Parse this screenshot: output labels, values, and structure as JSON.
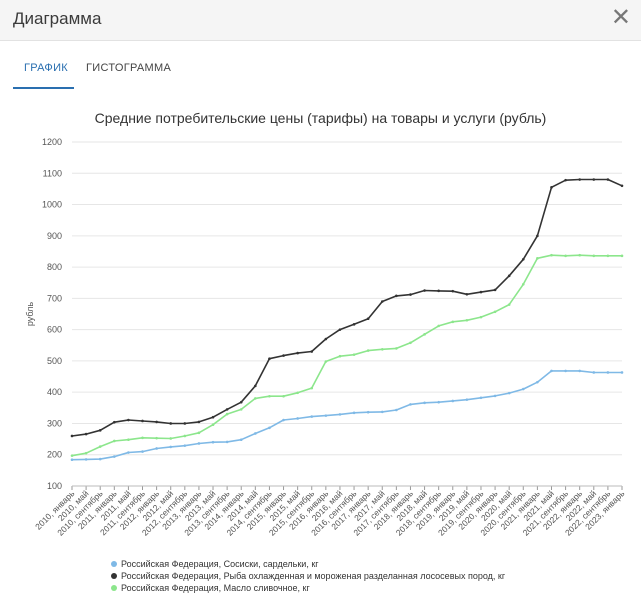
{
  "window": {
    "title": "Диаграмма"
  },
  "tabs": [
    {
      "label": "ГРАФИК",
      "active": true
    },
    {
      "label": "ГИСТОГРАММА",
      "active": false
    }
  ],
  "icons": {
    "close": "close-icon"
  },
  "colors": {
    "accent": "#2a6fb0",
    "series": [
      "#7fb9e6",
      "#333333",
      "#8ce68c"
    ]
  },
  "chart_data": {
    "type": "line",
    "title": "Средние потребительские цены (тарифы) на товары и услуги (рубль)",
    "xlabel": "",
    "ylabel": "рубль",
    "ylim": [
      100,
      1200
    ],
    "yticks": [
      100,
      200,
      300,
      400,
      500,
      600,
      700,
      800,
      900,
      1000,
      1100,
      1200
    ],
    "grid": true,
    "legend_position": "bottom",
    "categories": [
      "2010, январь",
      "2010, май",
      "2010, сентябрь",
      "2011, январь",
      "2011, май",
      "2011, сентябрь",
      "2012, январь",
      "2012, май",
      "2012, сентябрь",
      "2013, январь",
      "2013, май",
      "2013, сентябрь",
      "2014, январь",
      "2014, май",
      "2014, сентябрь",
      "2015, январь",
      "2015, май",
      "2015, сентябрь",
      "2016, январь",
      "2016, май",
      "2016, сентябрь",
      "2017, январь",
      "2017, май",
      "2017, сентябрь",
      "2018, январь",
      "2018, май",
      "2018, сентябрь",
      "2019, январь",
      "2019, май",
      "2019, сентябрь",
      "2020, январь",
      "2020, май",
      "2020, сентябрь",
      "2021, январь",
      "2021, май",
      "2021, сентябрь",
      "2022, январь",
      "2022, май",
      "2022, сентябрь",
      "2023, январь"
    ],
    "series": [
      {
        "name": "Российская Федерация, Сосиски, сардельки, кг",
        "color": "#7fb9e6",
        "values": [
          184,
          185,
          186,
          194,
          207,
          210,
          220,
          225,
          229,
          236,
          240,
          241,
          248,
          268,
          286,
          311,
          316,
          322,
          325,
          329,
          334,
          336,
          337,
          343,
          361,
          366,
          368,
          372,
          376,
          382,
          388,
          397,
          410,
          432,
          468,
          468,
          468,
          463,
          463,
          463
        ]
      },
      {
        "name": "Российская Федерация, Рыба охлажденная и мороженая разделанная лососевых пород, кг",
        "color": "#333333",
        "values": [
          260,
          266,
          278,
          304,
          311,
          308,
          305,
          300,
          300,
          305,
          320,
          345,
          368,
          420,
          507,
          517,
          525,
          530,
          570,
          600,
          617,
          635,
          690,
          708,
          712,
          725,
          724,
          723,
          713,
          720,
          727,
          772,
          825,
          900,
          1055,
          1078,
          1080,
          1080,
          1080,
          1060
        ]
      },
      {
        "name": "Российская Федерация, Масло сливочное, кг",
        "color": "#8ce68c",
        "values": [
          197,
          205,
          226,
          244,
          248,
          254,
          253,
          252,
          260,
          270,
          296,
          330,
          345,
          380,
          387,
          387,
          398,
          413,
          498,
          515,
          520,
          533,
          537,
          540,
          558,
          585,
          612,
          625,
          630,
          640,
          657,
          680,
          745,
          828,
          838,
          836,
          838,
          836,
          836,
          836
        ]
      }
    ]
  }
}
